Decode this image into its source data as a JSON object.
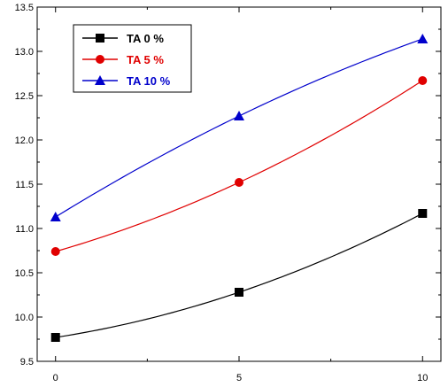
{
  "chart_data": {
    "type": "line",
    "x": [
      0,
      5,
      10
    ],
    "xlim": [
      -0.5,
      10.5
    ],
    "ylim": [
      9.5,
      13.5
    ],
    "x_ticks": [
      0,
      5,
      10
    ],
    "x_tick_labels": [
      "0",
      "5",
      "10"
    ],
    "y_ticks": [
      9.5,
      10.0,
      10.5,
      11.0,
      11.5,
      12.0,
      12.5,
      13.0,
      13.5
    ],
    "y_tick_labels": [
      "9.5",
      "10.0",
      "10.5",
      "11.0",
      "11.5",
      "12.0",
      "12.5",
      "13.0",
      "13.5"
    ],
    "grid": false,
    "legend_position": "top-left",
    "series": [
      {
        "name": "TA  0 %",
        "values": [
          9.77,
          10.28,
          11.17
        ],
        "color": "#000000",
        "marker": "square"
      },
      {
        "name": "TA  5 %",
        "values": [
          10.74,
          11.52,
          12.67
        ],
        "color": "#e00000",
        "marker": "circle"
      },
      {
        "name": "TA 10 %",
        "values": [
          11.13,
          12.27,
          13.14
        ],
        "color": "#0000cc",
        "marker": "triangle"
      }
    ]
  }
}
